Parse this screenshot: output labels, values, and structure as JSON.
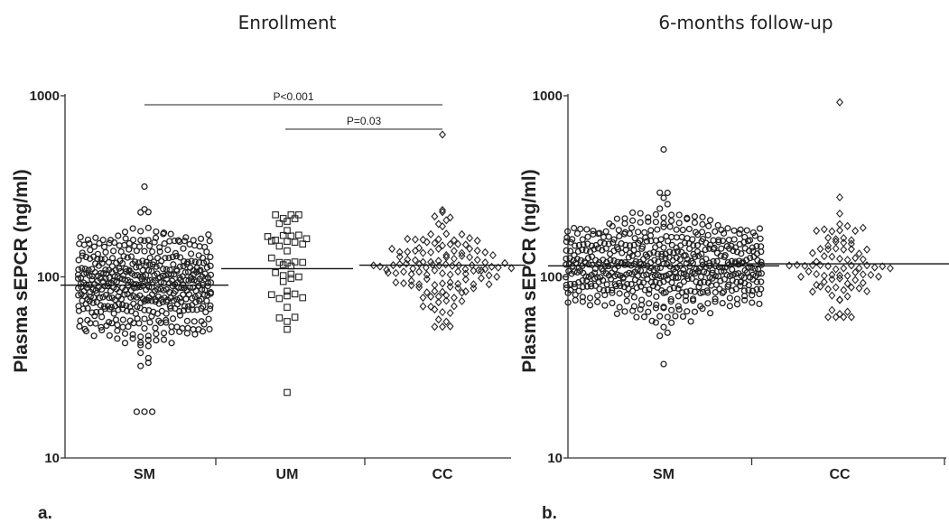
{
  "chart_data": [
    {
      "type": "scatter",
      "panel_label": "a.",
      "title": "Enrollment",
      "ylabel": "Plasma sEPCR (ng/ml)",
      "yscale": "log",
      "ylim": [
        10,
        1000
      ],
      "yticks": [
        "10",
        "100",
        "1000"
      ],
      "categories": [
        "SM",
        "UM",
        "CC"
      ],
      "groups": [
        {
          "name": "SM",
          "marker": "circle",
          "count": 480,
          "median": 90,
          "min": 18,
          "max": 315
        },
        {
          "name": "UM",
          "marker": "square",
          "count": 45,
          "median": 111,
          "min": 23,
          "max": 220
        },
        {
          "name": "CC",
          "marker": "diamond",
          "count": 130,
          "median": 116,
          "min": 53,
          "max": 610
        }
      ],
      "annotations": [
        {
          "text": "P<0.001",
          "from": "SM",
          "to": "CC"
        },
        {
          "text": "P=0.03",
          "from": "UM",
          "to": "CC"
        }
      ]
    },
    {
      "type": "scatter",
      "panel_label": "b.",
      "title": "6-months follow-up",
      "ylabel": "Plasma sEPCR (ng/ml)",
      "yscale": "log",
      "ylim": [
        10,
        1000
      ],
      "yticks": [
        "10",
        "100",
        "1000"
      ],
      "categories": [
        "SM",
        "CC"
      ],
      "groups": [
        {
          "name": "SM",
          "marker": "circle",
          "count": 560,
          "median": 115,
          "min": 33,
          "max": 505
        },
        {
          "name": "CC",
          "marker": "diamond",
          "count": 85,
          "median": 118,
          "min": 60,
          "max": 920
        }
      ],
      "annotations": []
    }
  ]
}
